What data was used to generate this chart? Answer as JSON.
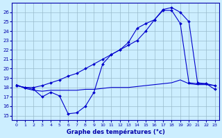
{
  "title": "",
  "xlabel": "Graphe des températures (°c)",
  "background_color": "#cceeff",
  "grid_color": "#99bbcc",
  "line_color": "#0000cc",
  "tick_color": "#0000aa",
  "xticks": [
    0,
    1,
    2,
    3,
    4,
    5,
    6,
    7,
    8,
    9,
    10,
    11,
    12,
    13,
    14,
    15,
    16,
    17,
    18,
    19,
    20,
    21,
    22,
    23
  ],
  "yticks": [
    15,
    16,
    17,
    18,
    19,
    20,
    21,
    22,
    23,
    24,
    25,
    26
  ],
  "ylim": [
    14.5,
    27.0
  ],
  "xlim": [
    -0.5,
    23.5
  ],
  "series1_x": [
    0,
    1,
    2,
    3,
    4,
    5,
    6,
    7,
    8,
    9,
    10,
    11,
    12,
    13,
    14,
    15,
    16,
    17,
    18,
    19,
    20,
    21,
    22,
    23
  ],
  "series1_y": [
    18.2,
    18.0,
    17.8,
    17.0,
    17.5,
    17.1,
    15.2,
    15.3,
    16.0,
    17.5,
    20.5,
    21.5,
    22.0,
    22.8,
    24.3,
    24.8,
    25.2,
    26.2,
    26.2,
    24.8,
    18.5,
    18.4,
    18.4,
    17.8
  ],
  "series2_x": [
    0,
    1,
    2,
    3,
    4,
    5,
    6,
    7,
    8,
    9,
    10,
    11,
    12,
    13,
    14,
    15,
    16,
    17,
    18,
    19,
    20,
    21,
    22,
    23
  ],
  "series2_y": [
    18.2,
    18.0,
    18.0,
    18.2,
    18.5,
    18.8,
    19.2,
    19.5,
    20.0,
    20.5,
    21.0,
    21.5,
    22.0,
    22.5,
    23.0,
    24.0,
    25.2,
    26.3,
    26.5,
    26.0,
    25.0,
    18.5,
    18.4,
    18.2
  ],
  "series3_x": [
    0,
    1,
    2,
    3,
    4,
    5,
    6,
    7,
    8,
    9,
    10,
    11,
    12,
    13,
    14,
    15,
    16,
    17,
    18,
    19,
    20,
    21,
    22,
    23
  ],
  "series3_y": [
    18.3,
    17.9,
    17.7,
    17.6,
    17.7,
    17.7,
    17.7,
    17.7,
    17.8,
    17.8,
    17.9,
    18.0,
    18.0,
    18.0,
    18.1,
    18.2,
    18.3,
    18.4,
    18.5,
    18.8,
    18.4,
    18.3,
    18.3,
    18.2
  ]
}
